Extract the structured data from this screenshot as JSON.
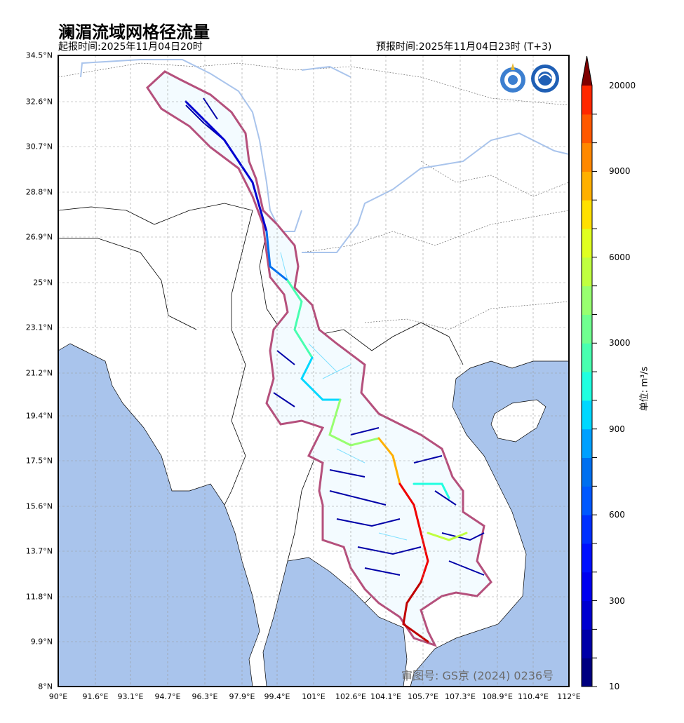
{
  "header": {
    "title": "澜湄流域网格径流量",
    "issue_time": "起报时间:2025年11月04日20时",
    "forecast_time": "预报时间:2025年11月04日23时 (T+3)"
  },
  "map": {
    "lat_ticks": [
      "34.5°N",
      "32.6°N",
      "30.7°N",
      "28.8°N",
      "26.9°N",
      "25°N",
      "23.1°N",
      "21.2°N",
      "19.4°N",
      "17.5°N",
      "15.6°N",
      "13.7°N",
      "11.8°N",
      "9.9°N",
      "8°N"
    ],
    "lon_ticks": [
      "90°E",
      "91.6°E",
      "93.1°E",
      "94.7°E",
      "96.3°E",
      "97.9°E",
      "99.4°E",
      "101°E",
      "102.6°E",
      "104.1°E",
      "105.7°E",
      "107.3°E",
      "108.9°E",
      "110.4°E",
      "112°E"
    ],
    "watermark": "审图号: GS京 (2024) 0236号",
    "colors": {
      "sea": "#a9c4ec",
      "land": "#ffffff",
      "basin_outline": "#b5507c",
      "lakes": "#a9c4ec"
    },
    "logos": [
      "wmo-logo",
      "cma-logo"
    ]
  },
  "colorbar": {
    "unit": "单位: m³/s",
    "labels": [
      "20000",
      "9000",
      "6000",
      "3000",
      "900",
      "600",
      "300",
      "10"
    ],
    "extend_color": "#800000",
    "colors": [
      "#000080",
      "#0000a8",
      "#0000d0",
      "#0000f0",
      "#0010ff",
      "#0030ff",
      "#0058ff",
      "#0070f0",
      "#00a0ff",
      "#00d8ff",
      "#20ffe0",
      "#48ffb0",
      "#70ff90",
      "#98ff70",
      "#c0ff40",
      "#e0ff20",
      "#ffe000",
      "#ffb000",
      "#ff8800",
      "#ff5800",
      "#ff2800",
      "#f00000",
      "#c00000"
    ]
  }
}
